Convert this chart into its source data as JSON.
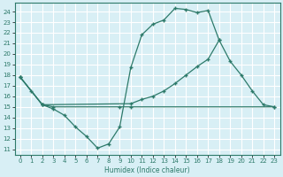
{
  "xlabel": "Humidex (Indice chaleur)",
  "xlim": [
    -0.5,
    23.5
  ],
  "ylim": [
    10.5,
    24.8
  ],
  "xticks": [
    0,
    1,
    2,
    3,
    4,
    5,
    6,
    7,
    8,
    9,
    10,
    11,
    12,
    13,
    14,
    15,
    16,
    17,
    18,
    19,
    20,
    21,
    22,
    23
  ],
  "yticks": [
    11,
    12,
    13,
    14,
    15,
    16,
    17,
    18,
    19,
    20,
    21,
    22,
    23,
    24
  ],
  "line_color": "#2d7a6a",
  "bg_color": "#d8eff5",
  "grid_color": "#ffffff",
  "lines": [
    {
      "x": [
        0,
        1,
        2,
        3,
        4,
        5,
        6,
        7,
        8,
        9,
        10,
        11,
        12,
        13,
        14,
        15,
        16,
        17,
        18
      ],
      "y": [
        17.8,
        16.5,
        15.2,
        14.8,
        14.2,
        13.1,
        12.2,
        11.1,
        11.5,
        13.1,
        18.7,
        21.8,
        22.8,
        23.2,
        24.3,
        24.2,
        23.9,
        24.1,
        21.3
      ]
    },
    {
      "x": [
        0,
        2,
        10,
        11,
        12,
        13,
        14,
        15,
        16,
        17,
        18,
        19,
        20,
        21,
        22,
        23
      ],
      "y": [
        17.8,
        15.2,
        15.3,
        15.7,
        16.0,
        16.5,
        17.2,
        18.0,
        18.8,
        19.5,
        21.3,
        19.3,
        18.0,
        16.5,
        15.2,
        15.0
      ]
    },
    {
      "x": [
        0,
        2,
        3,
        9,
        10,
        23
      ],
      "y": [
        17.8,
        15.2,
        15.0,
        15.0,
        15.0,
        15.0
      ]
    }
  ]
}
